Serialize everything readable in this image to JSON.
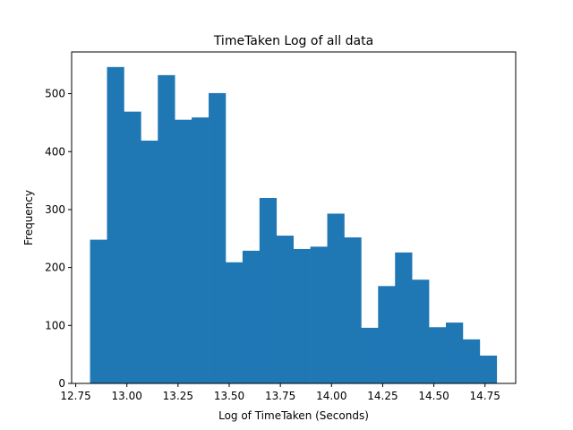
{
  "chart_data": {
    "type": "bar",
    "title": "TimeTaken Log of all data",
    "xlabel": "Log of TimeTaken (Seconds)",
    "ylabel": "Frequency",
    "xlim": [
      12.73,
      14.9
    ],
    "ylim": [
      0,
      572
    ],
    "xticks": [
      12.75,
      13.0,
      13.25,
      13.5,
      13.75,
      14.0,
      14.25,
      14.5,
      14.75
    ],
    "xtick_labels": [
      "12.75",
      "13.00",
      "13.25",
      "13.50",
      "13.75",
      "14.00",
      "14.25",
      "14.50",
      "14.75"
    ],
    "yticks": [
      0,
      100,
      200,
      300,
      400,
      500
    ],
    "ytick_labels": [
      "0",
      "100",
      "200",
      "300",
      "400",
      "500"
    ],
    "bin_start": 12.82,
    "bin_width": 0.0828,
    "values": [
      248,
      546,
      469,
      419,
      532,
      455,
      459,
      501,
      209,
      229,
      320,
      255,
      232,
      236,
      293,
      252,
      96,
      168,
      226,
      179,
      97,
      105,
      76,
      48
    ],
    "bar_color": "#1f77b4",
    "grid": false,
    "legend": "none"
  }
}
